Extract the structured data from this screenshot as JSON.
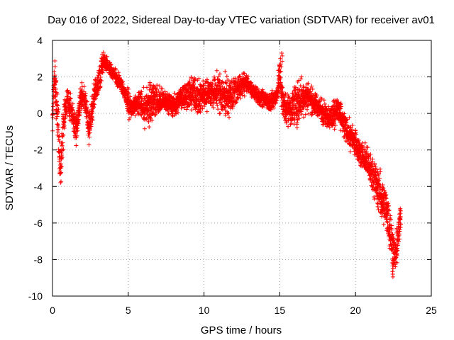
{
  "chart_data": {
    "type": "scatter",
    "title": "Day 016 of 2022, Sidereal Day-to-day VTEC variation (SDTVAR) for receiver av01",
    "xlabel": "GPS time / hours",
    "ylabel": "SDTVAR / TECUs",
    "xlim": [
      0,
      25
    ],
    "ylim": [
      -10,
      4
    ],
    "xticks": [
      0,
      5,
      10,
      15,
      20,
      25
    ],
    "yticks": [
      -10,
      -8,
      -6,
      -4,
      -2,
      0,
      2,
      4
    ],
    "grid": true,
    "marker": "+",
    "color": "#ff0000",
    "series": [
      {
        "name": "SDTVAR",
        "x": [
          0.0,
          0.1,
          0.2,
          0.3,
          0.4,
          0.5,
          0.6,
          0.7,
          0.8,
          1.0,
          1.2,
          1.4,
          1.6,
          1.8,
          2.0,
          2.2,
          2.4,
          2.6,
          2.8,
          3.0,
          3.2,
          3.4,
          3.6,
          3.8,
          4.0,
          4.2,
          4.4,
          4.6,
          4.8,
          5.0,
          5.2,
          5.5,
          5.8,
          6.1,
          6.4,
          6.7,
          7.0,
          7.3,
          7.6,
          8.0,
          8.4,
          8.8,
          9.2,
          9.6,
          10.0,
          10.4,
          10.8,
          11.2,
          11.6,
          12.0,
          12.4,
          12.8,
          13.2,
          13.6,
          14.0,
          14.4,
          14.8,
          15.0,
          15.2,
          15.6,
          16.0,
          16.4,
          16.8,
          17.2,
          17.6,
          18.0,
          18.4,
          18.8,
          19.2,
          19.6,
          20.0,
          20.4,
          20.8,
          21.2,
          21.6,
          22.0,
          22.2,
          22.4,
          22.6,
          22.8,
          23.0
        ],
        "y": [
          -0.6,
          2.2,
          1.2,
          0.5,
          -1.5,
          -3.0,
          -2.5,
          -1.0,
          0.2,
          0.8,
          0.3,
          -0.5,
          -1.0,
          0.6,
          1.0,
          0.5,
          -0.8,
          0.0,
          1.2,
          1.5,
          2.3,
          3.0,
          2.7,
          2.4,
          2.2,
          2.0,
          1.8,
          1.5,
          1.0,
          0.6,
          0.3,
          0.4,
          0.6,
          0.2,
          0.5,
          0.9,
          0.5,
          0.7,
          0.6,
          0.4,
          0.8,
          1.0,
          1.2,
          0.9,
          1.0,
          1.1,
          1.2,
          1.1,
          0.9,
          1.0,
          1.5,
          1.7,
          1.2,
          0.9,
          0.8,
          0.6,
          1.0,
          2.2,
          0.5,
          0.2,
          0.4,
          0.8,
          1.0,
          0.6,
          0.3,
          0.0,
          -0.3,
          0.3,
          -0.6,
          -1.2,
          -1.6,
          -2.3,
          -2.8,
          -3.5,
          -4.3,
          -5.2,
          -6.0,
          -7.0,
          -7.8,
          -6.8,
          -5.5
        ],
        "spread": [
          1.5,
          1.8,
          2.6,
          2.4,
          2.6,
          1.8,
          2.4,
          2.4,
          1.8,
          1.4,
          1.6,
          1.8,
          1.8,
          1.6,
          1.4,
          1.6,
          2.0,
          1.8,
          1.6,
          1.6,
          1.6,
          0.8,
          0.8,
          0.8,
          0.8,
          0.8,
          0.8,
          0.9,
          0.9,
          1.6,
          1.0,
          1.1,
          1.6,
          2.0,
          2.4,
          2.2,
          1.8,
          1.2,
          1.2,
          1.2,
          1.4,
          1.6,
          2.0,
          2.2,
          1.8,
          1.6,
          2.0,
          2.4,
          2.2,
          1.8,
          1.4,
          1.0,
          0.8,
          1.0,
          1.0,
          1.2,
          1.0,
          2.0,
          1.8,
          1.8,
          2.4,
          2.4,
          2.0,
          1.4,
          1.2,
          1.4,
          1.6,
          1.4,
          1.6,
          1.6,
          1.4,
          1.6,
          1.8,
          2.2,
          2.4,
          2.6,
          2.6,
          2.4,
          1.8,
          2.2,
          1.6
        ]
      }
    ],
    "annotations": [
      {
        "x": 3.5,
        "y": 3.1,
        "label": ""
      },
      {
        "x": 15.1,
        "y": 3.3,
        "label": ""
      },
      {
        "x": 22.5,
        "y": -8.2,
        "label": ""
      }
    ]
  }
}
